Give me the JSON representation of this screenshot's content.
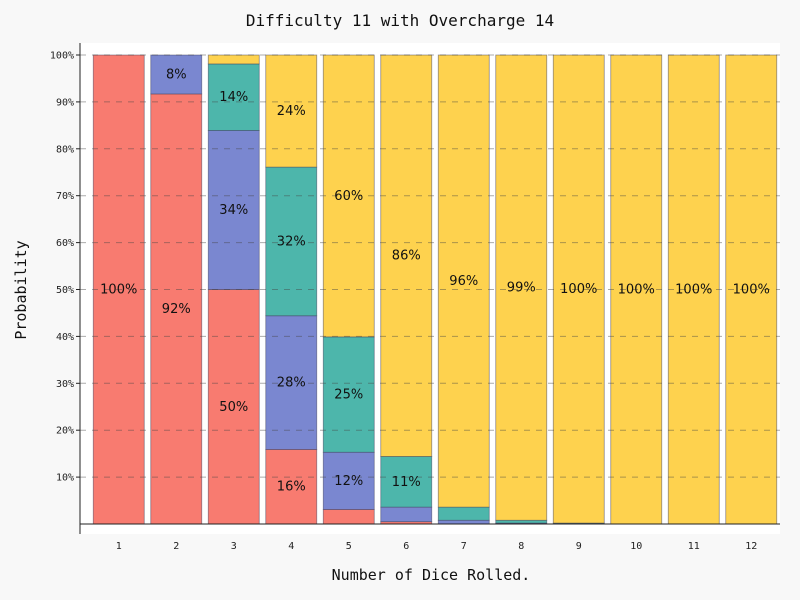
{
  "chart_data": {
    "type": "bar",
    "stacked": true,
    "title": "Difficulty 11 with Overcharge 14",
    "xlabel": "Number of Dice Rolled.",
    "ylabel": "Probability",
    "categories": [
      "1",
      "2",
      "3",
      "4",
      "5",
      "6",
      "7",
      "8",
      "9",
      "10",
      "11",
      "12"
    ],
    "ylim": [
      0,
      100
    ],
    "y_ticks": [
      "10%",
      "20%",
      "30%",
      "40%",
      "50%",
      "60%",
      "70%",
      "80%",
      "90%",
      "100%"
    ],
    "grid": "horizontal dashed",
    "series": [
      {
        "color": "#f87b70",
        "values": [
          100,
          91.7,
          50,
          15.9,
          3.1,
          0.5,
          0.0,
          0.0,
          0.0,
          0.0,
          0.0,
          0.0
        ],
        "labels": [
          "100%",
          "92%",
          "50%",
          "16%",
          "",
          "",
          "",
          "",
          "",
          "",
          "",
          ""
        ]
      },
      {
        "color": "#7a87d0",
        "values": [
          0,
          8.3,
          33.9,
          28.5,
          12.2,
          3.1,
          0.8,
          0.2,
          0.0,
          0.0,
          0.0,
          0.0
        ],
        "labels": [
          "",
          "8%",
          "34%",
          "28%",
          "12%",
          "",
          "",
          "",
          "",
          "",
          "",
          ""
        ]
      },
      {
        "color": "#4db6ab",
        "values": [
          0,
          0,
          14.2,
          31.7,
          24.6,
          10.8,
          2.8,
          0.6,
          0.2,
          0.0,
          0.0,
          0.0
        ],
        "labels": [
          "",
          "",
          "14%",
          "32%",
          "25%",
          "11%",
          "",
          "",
          "",
          "",
          "",
          ""
        ]
      },
      {
        "color": "#fed24e",
        "values": [
          0,
          0,
          1.9,
          23.9,
          60.1,
          85.6,
          96.4,
          99.2,
          99.8,
          100,
          100,
          100
        ],
        "labels": [
          "",
          "",
          "",
          "24%",
          "60%",
          "86%",
          "96%",
          "99%",
          "100%",
          "100%",
          "100%",
          "100%"
        ]
      }
    ]
  }
}
